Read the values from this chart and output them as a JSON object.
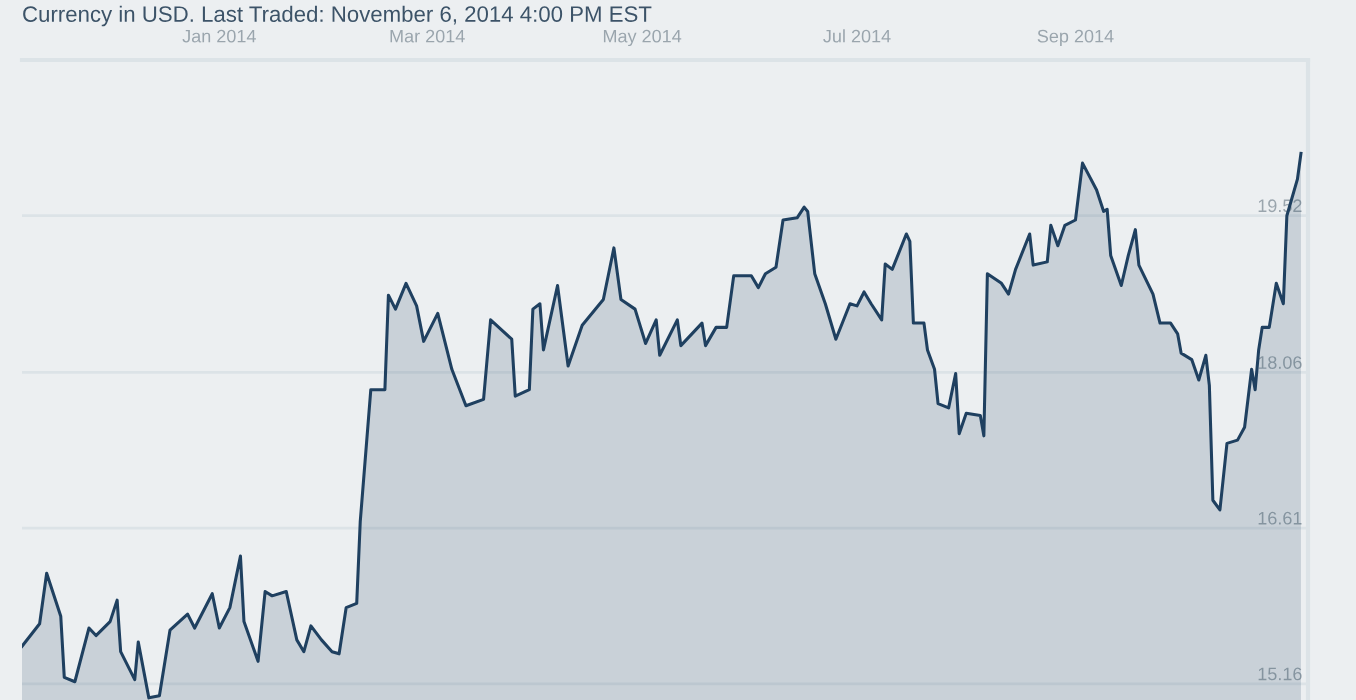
{
  "chart_data": {
    "type": "area",
    "title": "Currency in USD. Last Traded: November 6, 2014 4:00 PM EST",
    "x": [
      "2013-11-06",
      "2013-11-11",
      "2013-11-13",
      "2013-11-17",
      "2013-11-18",
      "2013-11-21",
      "2013-11-25",
      "2013-11-27",
      "2013-12-01",
      "2013-12-03",
      "2013-12-04",
      "2013-12-08",
      "2013-12-09",
      "2013-12-12",
      "2013-12-15",
      "2013-12-18",
      "2013-12-23",
      "2013-12-25",
      "2013-12-30",
      "2014-01-01",
      "2014-01-04",
      "2014-01-07",
      "2014-01-08",
      "2014-01-12",
      "2014-01-14",
      "2014-01-16",
      "2014-01-20",
      "2014-01-23",
      "2014-01-25",
      "2014-01-27",
      "2014-01-30",
      "2014-02-02",
      "2014-02-04",
      "2014-02-06",
      "2014-02-09",
      "2014-02-10",
      "2014-02-13",
      "2014-02-17",
      "2014-02-18",
      "2014-02-20",
      "2014-02-23",
      "2014-02-26",
      "2014-02-28",
      "2014-03-04",
      "2014-03-08",
      "2014-03-12",
      "2014-03-17",
      "2014-03-19",
      "2014-03-25",
      "2014-03-26",
      "2014-03-30",
      "2014-03-31",
      "2014-04-02",
      "2014-04-03",
      "2014-04-07",
      "2014-04-10",
      "2014-04-14",
      "2014-04-20",
      "2014-04-23",
      "2014-04-25",
      "2014-04-29",
      "2014-05-02",
      "2014-05-05",
      "2014-05-06",
      "2014-05-11",
      "2014-05-12",
      "2014-05-18",
      "2014-05-19",
      "2014-05-22",
      "2014-05-25",
      "2014-05-27",
      "2014-06-01",
      "2014-06-03",
      "2014-06-05",
      "2014-06-08",
      "2014-06-10",
      "2014-06-14",
      "2014-06-16",
      "2014-06-17",
      "2014-06-19",
      "2014-06-22",
      "2014-06-25",
      "2014-06-29",
      "2014-07-01",
      "2014-07-03",
      "2014-07-05",
      "2014-07-08",
      "2014-07-09",
      "2014-07-11",
      "2014-07-15",
      "2014-07-16",
      "2014-07-17",
      "2014-07-20",
      "2014-07-21",
      "2014-07-23",
      "2014-07-24",
      "2014-07-27",
      "2014-07-29",
      "2014-07-30",
      "2014-08-01",
      "2014-08-05",
      "2014-08-06",
      "2014-08-07",
      "2014-08-11",
      "2014-08-13",
      "2014-08-15",
      "2014-08-19",
      "2014-08-20",
      "2014-08-24",
      "2014-08-25",
      "2014-08-27",
      "2014-08-29",
      "2014-09-01",
      "2014-09-03",
      "2014-09-07",
      "2014-09-09",
      "2014-09-10",
      "2014-09-11",
      "2014-09-14",
      "2014-09-16",
      "2014-09-18",
      "2014-09-19",
      "2014-09-23",
      "2014-09-25",
      "2014-09-28",
      "2014-09-30",
      "2014-10-01",
      "2014-10-04",
      "2014-10-06",
      "2014-10-08",
      "2014-10-09",
      "2014-10-10",
      "2014-10-12",
      "2014-10-14",
      "2014-10-17",
      "2014-10-19",
      "2014-10-21",
      "2014-10-22",
      "2014-10-23",
      "2014-10-24",
      "2014-10-26",
      "2014-10-28",
      "2014-10-30",
      "2014-10-31",
      "2014-11-03",
      "2014-11-04"
    ],
    "series": [
      {
        "color": "#1f4060",
        "values": [
          15.51,
          15.72,
          16.19,
          15.79,
          15.22,
          15.18,
          15.68,
          15.61,
          15.74,
          15.94,
          15.46,
          15.2,
          15.55,
          15.03,
          15.05,
          15.66,
          15.81,
          15.68,
          16.0,
          15.68,
          15.87,
          16.35,
          15.74,
          15.37,
          16.02,
          15.98,
          16.02,
          15.57,
          15.46,
          15.7,
          15.57,
          15.46,
          15.44,
          15.87,
          15.91,
          16.67,
          17.9,
          17.9,
          18.78,
          18.65,
          18.89,
          18.68,
          18.35,
          18.61,
          18.09,
          17.75,
          17.81,
          18.55,
          18.37,
          17.84,
          17.9,
          18.65,
          18.7,
          18.27,
          18.87,
          18.12,
          18.5,
          18.74,
          19.22,
          18.74,
          18.65,
          18.33,
          18.55,
          18.22,
          18.55,
          18.31,
          18.52,
          18.31,
          18.48,
          18.48,
          18.96,
          18.96,
          18.85,
          18.98,
          19.04,
          19.48,
          19.5,
          19.6,
          19.56,
          18.98,
          18.7,
          18.37,
          18.7,
          18.68,
          18.81,
          18.7,
          18.55,
          19.07,
          19.02,
          19.35,
          19.28,
          18.52,
          18.52,
          18.27,
          18.09,
          17.77,
          17.73,
          18.05,
          17.49,
          17.68,
          17.66,
          17.47,
          18.98,
          18.89,
          18.79,
          19.02,
          19.35,
          19.06,
          19.09,
          19.43,
          19.24,
          19.43,
          19.48,
          20.01,
          19.76,
          19.56,
          19.58,
          19.15,
          18.87,
          19.15,
          19.39,
          19.06,
          18.79,
          18.52,
          18.52,
          18.42,
          18.24,
          18.18,
          17.99,
          18.22,
          17.94,
          16.87,
          16.78,
          17.4,
          17.43,
          17.55,
          18.09,
          17.9,
          18.27,
          18.48,
          18.48,
          18.89,
          18.7,
          19.52,
          19.86,
          20.1
        ]
      }
    ],
    "xlim": [
      "2013-11-06",
      "2014-11-06"
    ],
    "xticks": [
      {
        "value": "2014-01-01",
        "label": "Jan 2014"
      },
      {
        "value": "2014-03-01",
        "label": "Mar 2014"
      },
      {
        "value": "2014-05-01",
        "label": "May 2014"
      },
      {
        "value": "2014-07-01",
        "label": "Jul 2014"
      },
      {
        "value": "2014-09-01",
        "label": "Sep 2014"
      }
    ],
    "ylim": [
      15.01,
      20.97
    ],
    "yticks": [
      15.16,
      16.61,
      18.06,
      19.52
    ],
    "grid": "y"
  }
}
